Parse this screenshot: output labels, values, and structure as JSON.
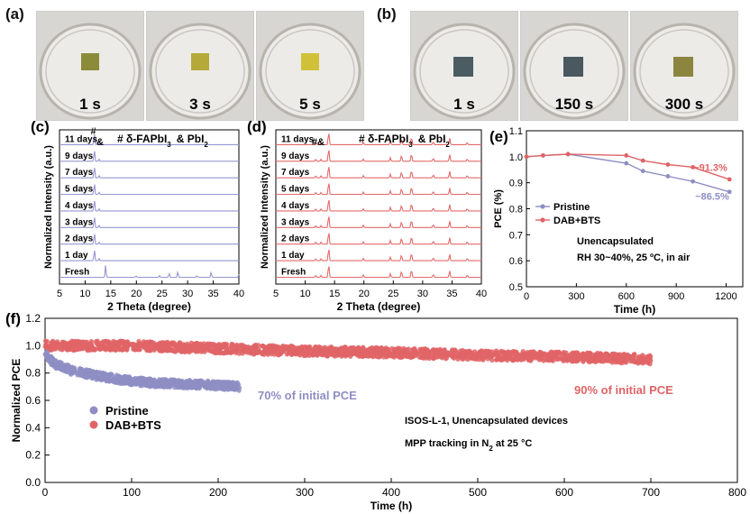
{
  "panels": {
    "a": {
      "label": "(a)",
      "photos": [
        {
          "time": "1 s",
          "film": "#8c8b3a"
        },
        {
          "time": "3 s",
          "film": "#b5a93a"
        },
        {
          "time": "5 s",
          "film": "#d1c139"
        }
      ]
    },
    "b": {
      "label": "(b)",
      "photos": [
        {
          "time": "1 s",
          "film": "#4b5d63"
        },
        {
          "time": "150 s",
          "film": "#4a5860"
        },
        {
          "time": "300 s",
          "film": "#8b8540"
        }
      ]
    },
    "c": {
      "label": "(c)"
    },
    "d": {
      "label": "(d)"
    },
    "e": {
      "label": "(e)"
    },
    "f": {
      "label": "(f)"
    }
  },
  "colors": {
    "pristine": "#8e8ec4",
    "dab_bts": "#e06466",
    "xrd_c": "#9696d2",
    "xrd_d": "#e46a6a"
  },
  "chart_data": [
    {
      "type": "line",
      "id": "c",
      "xlabel": "2 Theta (degree)",
      "ylabel": "Normalized Intensity (a.u.)",
      "xlim": [
        5,
        40
      ],
      "xticks": [
        5,
        10,
        15,
        20,
        25,
        30,
        35,
        40
      ],
      "traces": [
        "11 days",
        "9 days",
        "7 days",
        "5 days",
        "4 days",
        "3 days",
        "2 days",
        "1 day",
        "Fresh"
      ],
      "peak_labels": [
        "#",
        "&"
      ],
      "legend_text": "# δ-FAPbI",
      "legend_sub": "3",
      "legend_text2": "& PbI",
      "legend_sub2": "2"
    },
    {
      "type": "line",
      "id": "d",
      "xlabel": "2 Theta (degree)",
      "ylabel": "Normalized Intensity (a.u.)",
      "xlim": [
        5,
        40
      ],
      "xticks": [
        5,
        10,
        15,
        20,
        25,
        30,
        35,
        40
      ],
      "traces": [
        "11 days",
        "9 days",
        "7 days",
        "5 days",
        "4 days",
        "3 days",
        "2 days",
        "1 day",
        "Fresh"
      ],
      "peak_labels": [
        "#&"
      ],
      "legend_text": "# δ-FAPbI",
      "legend_sub": "3",
      "legend_text2": "& PbI",
      "legend_sub2": "2"
    },
    {
      "type": "line",
      "id": "e",
      "xlabel": "Time (h)",
      "ylabel": "PCE (%)",
      "xlim": [
        0,
        1300
      ],
      "ylim": [
        0.5,
        1.1
      ],
      "xticks": [
        0,
        300,
        600,
        900,
        1200
      ],
      "yticks": [
        0.5,
        0.6,
        0.7,
        0.8,
        0.9,
        1.0,
        1.1
      ],
      "series": [
        {
          "name": "Pristine",
          "x": [
            0,
            100,
            250,
            600,
            700,
            850,
            1000,
            1220
          ],
          "y": [
            1.0,
            1.005,
            1.01,
            0.975,
            0.945,
            0.925,
            0.905,
            0.865
          ]
        },
        {
          "name": "DAB+BTS",
          "x": [
            0,
            100,
            250,
            600,
            700,
            850,
            1000,
            1220
          ],
          "y": [
            1.0,
            1.005,
            1.01,
            1.005,
            0.985,
            0.97,
            0.96,
            0.913
          ]
        }
      ],
      "annotations": [
        "~91.3%",
        "~86.5%"
      ],
      "notes": [
        "Unencapsulated",
        "RH 30~40%, 25 ºC, in air"
      ]
    },
    {
      "type": "scatter",
      "id": "f",
      "xlabel": "Time (h)",
      "ylabel": "Normalized PCE",
      "xlim": [
        0,
        800
      ],
      "ylim": [
        0.0,
        1.2
      ],
      "xticks": [
        0,
        100,
        200,
        300,
        400,
        500,
        600,
        700,
        800
      ],
      "yticks": [
        0.0,
        0.2,
        0.4,
        0.6,
        0.8,
        1.0,
        1.2
      ],
      "series": [
        {
          "name": "Pristine",
          "x": [
            0,
            10,
            30,
            60,
            90,
            120,
            160,
            200,
            225
          ],
          "y": [
            0.95,
            0.87,
            0.82,
            0.78,
            0.75,
            0.73,
            0.72,
            0.71,
            0.7
          ]
        },
        {
          "name": "DAB+BTS",
          "x": [
            0,
            100,
            200,
            300,
            400,
            500,
            600,
            700
          ],
          "y": [
            1.0,
            1.0,
            0.98,
            0.96,
            0.95,
            0.93,
            0.92,
            0.9
          ]
        }
      ],
      "annotations": [
        "70% of initial PCE",
        "90% of initial PCE"
      ],
      "notes": [
        "ISOS-L-1, Unencapsulated devices",
        "MPP tracking in N",
        "2",
        " at 25 °C"
      ]
    }
  ]
}
